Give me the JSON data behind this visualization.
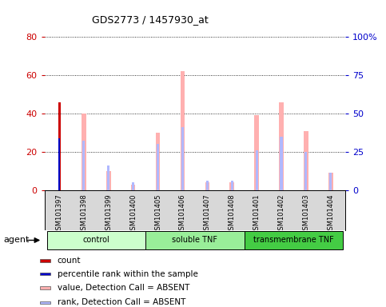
{
  "title": "GDS2773 / 1457930_at",
  "samples": [
    "GSM101397",
    "GSM101398",
    "GSM101399",
    "GSM101400",
    "GSM101405",
    "GSM101406",
    "GSM101407",
    "GSM101408",
    "GSM101401",
    "GSM101402",
    "GSM101403",
    "GSM101404"
  ],
  "groups": [
    {
      "label": "control",
      "start": 0,
      "end": 4,
      "color": "#ccffcc"
    },
    {
      "label": "soluble TNF",
      "start": 4,
      "end": 8,
      "color": "#99ee99"
    },
    {
      "label": "transmembrane TNF",
      "start": 8,
      "end": 12,
      "color": "#44cc44"
    }
  ],
  "count_values": [
    46,
    0,
    0,
    0,
    0,
    0,
    0,
    0,
    0,
    0,
    0,
    0
  ],
  "percentile_rank_values": [
    27,
    0,
    0,
    0,
    0,
    0,
    0,
    0,
    0,
    0,
    0,
    0
  ],
  "absent_value_bars": [
    0,
    40,
    10,
    3,
    30,
    62,
    4,
    4,
    39,
    46,
    31,
    9
  ],
  "absent_rank_bars": [
    0,
    26,
    13,
    4,
    24,
    33,
    5,
    5,
    21,
    28,
    20,
    9
  ],
  "left_ylim": [
    0,
    80
  ],
  "right_ylim": [
    0,
    100
  ],
  "left_yticks": [
    0,
    20,
    40,
    60,
    80
  ],
  "right_yticks": [
    0,
    25,
    50,
    75,
    100
  ],
  "right_yticklabels": [
    "0",
    "25",
    "50",
    "75",
    "100%"
  ],
  "left_ycolor": "#cc0000",
  "right_ycolor": "#0000cc",
  "absent_value_color": "#ffb0b0",
  "absent_rank_color": "#b0b8ff",
  "count_color": "#cc0000",
  "percentile_color": "#0000cc",
  "bg_color": "#d8d8d8",
  "plot_bg": "#ffffff",
  "agent_label": "agent",
  "legend_items": [
    {
      "color": "#cc0000",
      "label": "count"
    },
    {
      "color": "#0000cc",
      "label": "percentile rank within the sample"
    },
    {
      "color": "#ffb0b0",
      "label": "value, Detection Call = ABSENT"
    },
    {
      "color": "#b0b8ff",
      "label": "rank, Detection Call = ABSENT"
    }
  ]
}
